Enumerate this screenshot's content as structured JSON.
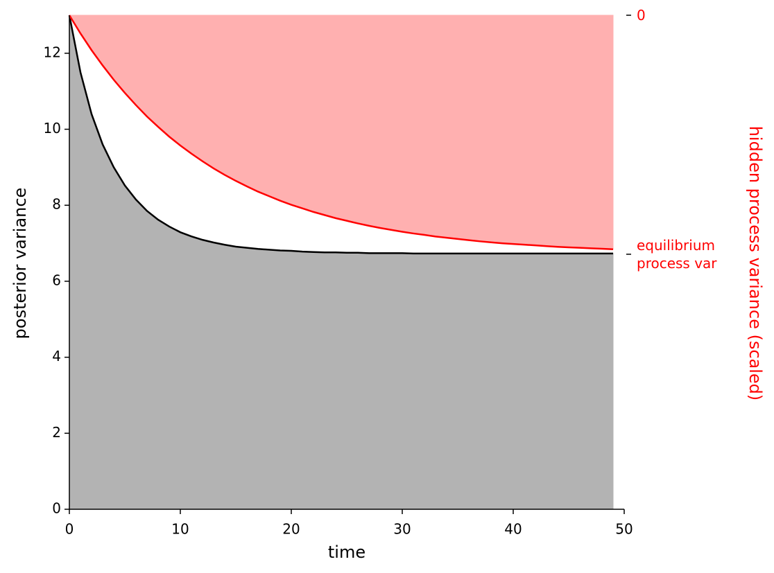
{
  "chart_data": {
    "type": "line",
    "x_label": "time",
    "y_label": "posterior variance",
    "y2_label": "hidden process variance (scaled)",
    "x": [
      0,
      1,
      2,
      3,
      4,
      5,
      6,
      7,
      8,
      9,
      10,
      11,
      12,
      13,
      14,
      15,
      16,
      17,
      18,
      19,
      20,
      21,
      22,
      23,
      24,
      25,
      26,
      27,
      28,
      29,
      30,
      31,
      32,
      33,
      34,
      35,
      36,
      37,
      38,
      39,
      40,
      41,
      42,
      43,
      44,
      45,
      46,
      47,
      48,
      49
    ],
    "series": [
      {
        "color": "#000000",
        "fill_color": "#b3b3b3",
        "fill_to": "bottom",
        "values": [
          13,
          11.5,
          10.4,
          9.6,
          9.0,
          8.52,
          8.15,
          7.85,
          7.62,
          7.44,
          7.29,
          7.18,
          7.09,
          7.02,
          6.96,
          6.91,
          6.88,
          6.85,
          6.83,
          6.81,
          6.8,
          6.78,
          6.77,
          6.76,
          6.76,
          6.75,
          6.75,
          6.74,
          6.74,
          6.74,
          6.74,
          6.73,
          6.73,
          6.73,
          6.73,
          6.73,
          6.73,
          6.73,
          6.73,
          6.73,
          6.73,
          6.73,
          6.73,
          6.73,
          6.73,
          6.73,
          6.73,
          6.73,
          6.73,
          6.73
        ]
      },
      {
        "color": "#ff0000",
        "fill_color": "#ffb0b0",
        "fill_to": "top",
        "axis": "y2",
        "values": [
          0,
          0.076,
          0.146,
          0.21,
          0.27,
          0.325,
          0.376,
          0.424,
          0.467,
          0.508,
          0.545,
          0.579,
          0.611,
          0.641,
          0.668,
          0.693,
          0.716,
          0.738,
          0.757,
          0.776,
          0.793,
          0.808,
          0.823,
          0.836,
          0.849,
          0.86,
          0.871,
          0.881,
          0.89,
          0.898,
          0.906,
          0.913,
          0.919,
          0.926,
          0.931,
          0.936,
          0.941,
          0.946,
          0.95,
          0.954,
          0.957,
          0.96,
          0.963,
          0.966,
          0.969,
          0.971,
          0.973,
          0.975,
          0.977,
          0.979
        ]
      }
    ],
    "xlim": [
      0,
      50
    ],
    "xticks": [
      0,
      10,
      20,
      30,
      40,
      50
    ],
    "ylim": [
      0,
      13
    ],
    "yticks": [
      0,
      2,
      4,
      6,
      8,
      10,
      12
    ],
    "y2lim": [
      2.067,
      0
    ],
    "y2ticks": [
      0,
      {
        "value": 1,
        "label": "equilibrium process var"
      }
    ],
    "y2_color": "#ff0000"
  }
}
